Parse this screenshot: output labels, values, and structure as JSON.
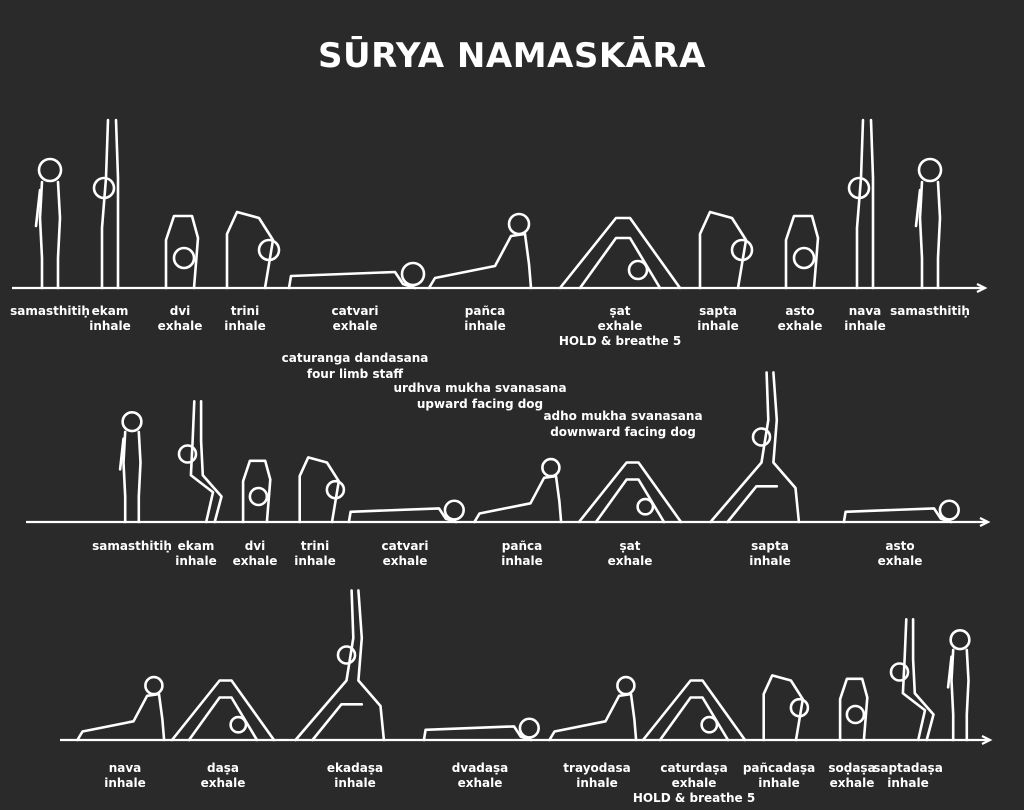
{
  "title": "SŪRYA NAMASKĀRA",
  "colors": {
    "background": "#2a2a2a",
    "line": "#ffffff"
  },
  "sequence_a": [
    {
      "name": "samasthitiḥ",
      "breath": "",
      "pose": "stand"
    },
    {
      "name": "ekam",
      "breath": "inhale",
      "pose": "arms-up"
    },
    {
      "name": "dvi",
      "breath": "exhale",
      "pose": "forward-fold"
    },
    {
      "name": "trini",
      "breath": "inhale",
      "pose": "half-lift"
    },
    {
      "name": "catvari",
      "breath": "exhale",
      "pose": "chaturanga"
    },
    {
      "name": "pañca",
      "breath": "inhale",
      "pose": "up-dog"
    },
    {
      "name": "ṣat",
      "breath": "exhale",
      "note": "HOLD & breathe 5",
      "pose": "down-dog"
    },
    {
      "name": "sapta",
      "breath": "inhale",
      "pose": "half-lift"
    },
    {
      "name": "asto",
      "breath": "exhale",
      "pose": "forward-fold"
    },
    {
      "name": "nava",
      "breath": "inhale",
      "pose": "arms-up"
    },
    {
      "name": "samasthitiḥ",
      "breath": "",
      "pose": "stand"
    }
  ],
  "pose_notes": [
    {
      "sanskrit": "caturanga dandasana",
      "english": "four limb staff"
    },
    {
      "sanskrit": "urdhva mukha svanasana",
      "english": "upward facing dog"
    },
    {
      "sanskrit": "adho mukha svanasana",
      "english": "downward facing dog"
    }
  ],
  "sequence_b_row1": [
    {
      "name": "samasthitiḥ",
      "breath": "",
      "pose": "stand"
    },
    {
      "name": "ekam",
      "breath": "inhale",
      "pose": "chair"
    },
    {
      "name": "dvi",
      "breath": "exhale",
      "pose": "forward-fold"
    },
    {
      "name": "trini",
      "breath": "inhale",
      "pose": "half-lift"
    },
    {
      "name": "catvari",
      "breath": "exhale",
      "pose": "chaturanga"
    },
    {
      "name": "pañca",
      "breath": "inhale",
      "pose": "up-dog"
    },
    {
      "name": "ṣat",
      "breath": "exhale",
      "pose": "down-dog"
    },
    {
      "name": "sapta",
      "breath": "inhale",
      "pose": "warrior"
    },
    {
      "name": "asto",
      "breath": "exhale",
      "pose": "chaturanga"
    }
  ],
  "sequence_b_row2": [
    {
      "name": "nava",
      "breath": "inhale",
      "pose": "up-dog"
    },
    {
      "name": "daṣa",
      "breath": "exhale",
      "pose": "down-dog"
    },
    {
      "name": "ekadaṣa",
      "breath": "inhale",
      "pose": "warrior"
    },
    {
      "name": "dvadaṣa",
      "breath": "exhale",
      "pose": "chaturanga"
    },
    {
      "name": "trayodasa",
      "breath": "inhale",
      "pose": "up-dog"
    },
    {
      "name": "caturdaṣa",
      "breath": "exhale",
      "note": "HOLD & breathe 5",
      "pose": "down-dog"
    },
    {
      "name": "pañcadaṣa",
      "breath": "inhale",
      "pose": "half-lift"
    },
    {
      "name": "soḍaṣa",
      "breath": "exhale",
      "pose": "forward-fold"
    },
    {
      "name": "saptadaṣa",
      "breath": "inhale",
      "pose": "chair"
    },
    {
      "name": "",
      "breath": "",
      "pose": "stand"
    }
  ]
}
